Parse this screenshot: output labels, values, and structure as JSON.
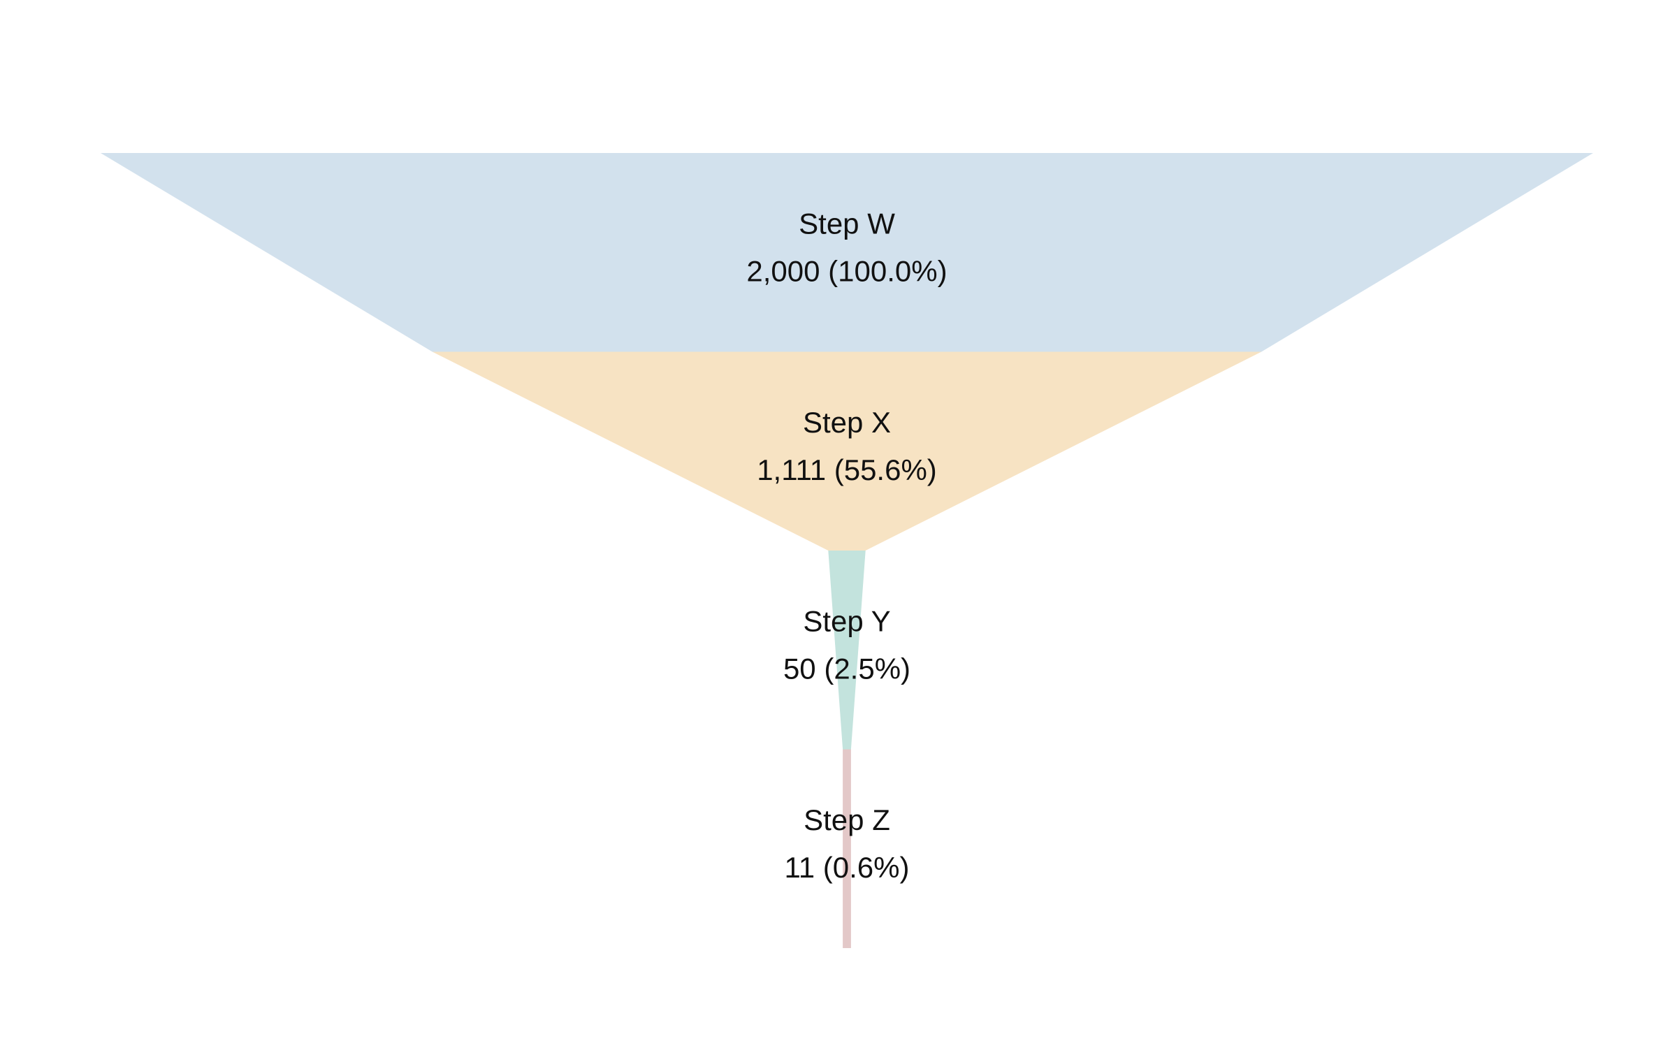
{
  "chart_data": {
    "type": "funnel",
    "stages": [
      {
        "label": "Step W",
        "value": 2000,
        "value_text": "2,000 (100.0%)",
        "percent": 100.0,
        "color": "#d2e1ed"
      },
      {
        "label": "Step X",
        "value": 1111,
        "value_text": "1,111 (55.6%)",
        "percent": 55.6,
        "color": "#f7e3c3"
      },
      {
        "label": "Step Y",
        "value": 50,
        "value_text": "50 (2.5%)",
        "percent": 2.5,
        "color": "#c3e3dd"
      },
      {
        "label": "Step Z",
        "value": 11,
        "value_text": "11 (0.6%)",
        "percent": 0.6,
        "color": "#e3c8c8"
      }
    ]
  }
}
